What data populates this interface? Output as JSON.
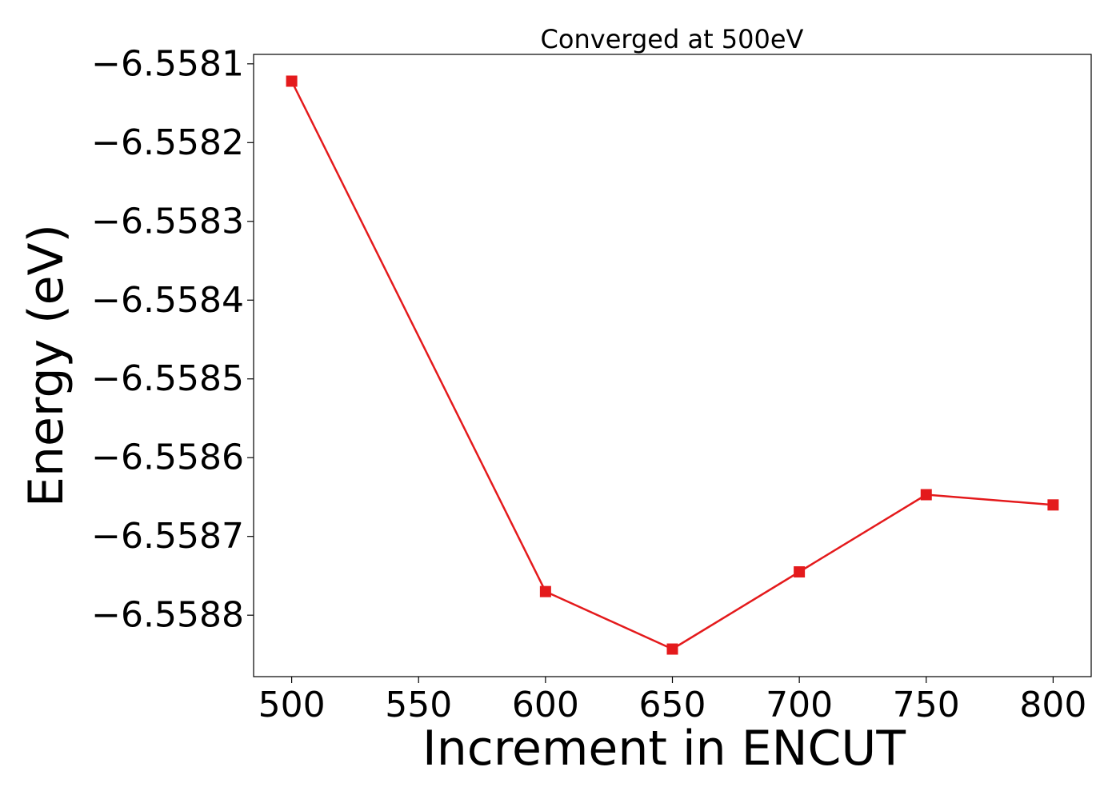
{
  "chart_data": {
    "type": "line",
    "title": "Converged at 500eV",
    "xlabel": "Increment in ENCUT",
    "ylabel": "Energy (eV)",
    "x": [
      500,
      600,
      650,
      700,
      750,
      800
    ],
    "series": [
      {
        "values": [
          -6.558122,
          -6.55877,
          -6.558843,
          -6.558745,
          -6.558647,
          -6.55866
        ],
        "color": "#e41a1c",
        "marker": "square"
      }
    ],
    "xlim": [
      485,
      815
    ],
    "ylim": [
      -6.558878,
      -6.558088
    ],
    "xticks": [
      500,
      550,
      600,
      650,
      700,
      750,
      800
    ],
    "xtick_labels": [
      "500",
      "550",
      "600",
      "650",
      "700",
      "750",
      "800"
    ],
    "yticks": [
      -6.5581,
      -6.5582,
      -6.5583,
      -6.5584,
      -6.5585,
      -6.5586,
      -6.5587,
      -6.5588
    ],
    "ytick_labels": [
      "−6.5581",
      "−6.5582",
      "−6.5583",
      "−6.5584",
      "−6.5585",
      "−6.5586",
      "−6.5587",
      "−6.5588"
    ],
    "grid": false,
    "legend": "none"
  }
}
